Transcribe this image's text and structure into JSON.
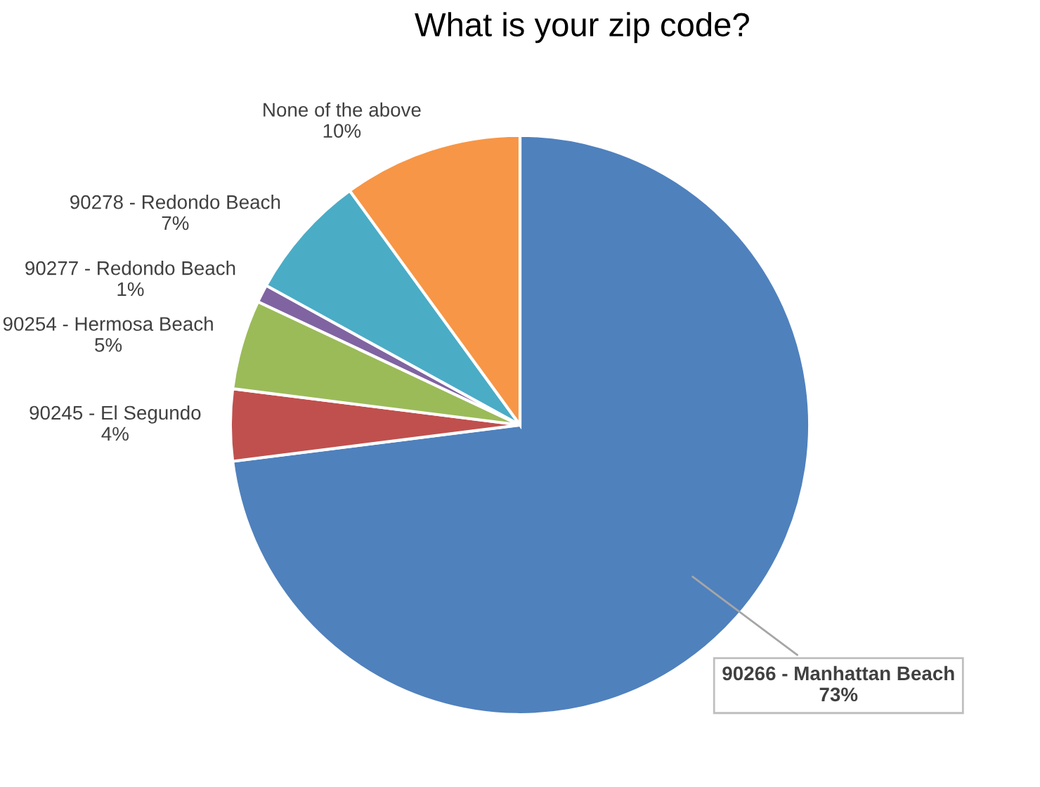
{
  "chart_data": {
    "type": "pie",
    "title": "What is your zip code?",
    "categories": [
      "90266 - Manhattan Beach",
      "90245 - El Segundo",
      "90254 - Hermosa Beach",
      "90277 - Redondo Beach",
      "90278 - Redondo Beach",
      "None of the above"
    ],
    "values": [
      73,
      4,
      5,
      1,
      7,
      10
    ],
    "colors": [
      "#4f81bd",
      "#c0504d",
      "#9bbb59",
      "#8064a2",
      "#4bacc6",
      "#f79646"
    ],
    "value_labels": [
      "73%",
      "4%",
      "5%",
      "1%",
      "7%",
      "10%"
    ]
  }
}
